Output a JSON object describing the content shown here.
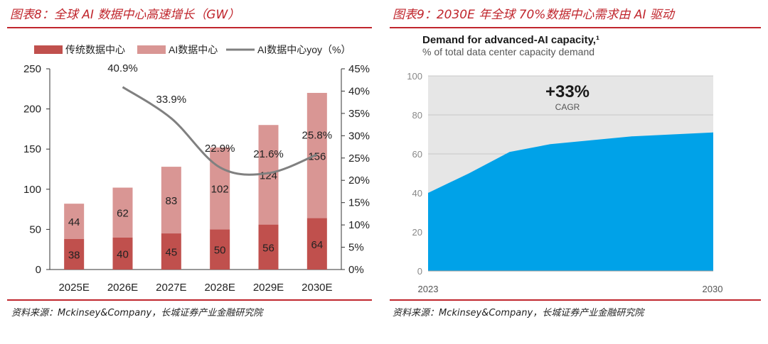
{
  "left_panel": {
    "title": "图表8：全球 AI 数据中心高速增长（GW）",
    "source": "资料来源：Mckinsey&Company，长城证券产业金融研究院"
  },
  "right_panel": {
    "title": "图表9：2030E 年全球 70%数据中心需求由 AI 驱动",
    "source": "资料来源：Mckinsey&Company，长城证券产业金融研究院"
  },
  "colors": {
    "accent": "#c0262d",
    "bar_dark": "#c0504d",
    "bar_light": "#d99694",
    "line": "#808080",
    "area": "#00a2e8",
    "area_bg": "#e6e6e6"
  },
  "chart_data": [
    {
      "type": "bar",
      "stacked": true,
      "categories": [
        "2025E",
        "2026E",
        "2027E",
        "2028E",
        "2029E",
        "2030E"
      ],
      "series": [
        {
          "name": "传统数据中心",
          "values": [
            38,
            40,
            45,
            50,
            56,
            64
          ],
          "labels": [
            "38",
            "40",
            "45",
            "50",
            "56",
            "64"
          ]
        },
        {
          "name": "AI数据中心",
          "values": [
            44,
            62,
            83,
            102,
            124,
            156
          ],
          "labels": [
            "44",
            "62",
            "83",
            "102",
            "124",
            "156"
          ]
        },
        {
          "name": "AI数据中心yoy（%）",
          "axis": "right",
          "values": [
            null,
            40.9,
            33.9,
            22.9,
            21.6,
            25.8
          ],
          "labels": [
            "",
            "40.9%",
            "33.9%",
            "22.9%",
            "21.6%",
            "25.8%"
          ]
        }
      ],
      "ylim": [
        0,
        250
      ],
      "yticks": [
        "0",
        "50",
        "100",
        "150",
        "200",
        "250"
      ],
      "y2lim": [
        0,
        45
      ],
      "y2ticks": [
        "0%",
        "5%",
        "10%",
        "15%",
        "20%",
        "25%",
        "30%",
        "35%",
        "40%",
        "45%"
      ],
      "legend_position": "top"
    },
    {
      "type": "area",
      "title": "Demand for advanced-AI capacity,¹",
      "subtitle": "% of total data center capacity demand",
      "annotation": "+33%",
      "annotation_sub": "CAGR",
      "x": [
        2023,
        2024,
        2025,
        2026,
        2027,
        2028,
        2029,
        2030
      ],
      "values": [
        40,
        50,
        61,
        65,
        67,
        69,
        70,
        71
      ],
      "ylim": [
        0,
        100
      ],
      "yticks": [
        "0",
        "20",
        "40",
        "60",
        "80",
        "100"
      ],
      "xticks": [
        "2023",
        "2030"
      ]
    }
  ]
}
